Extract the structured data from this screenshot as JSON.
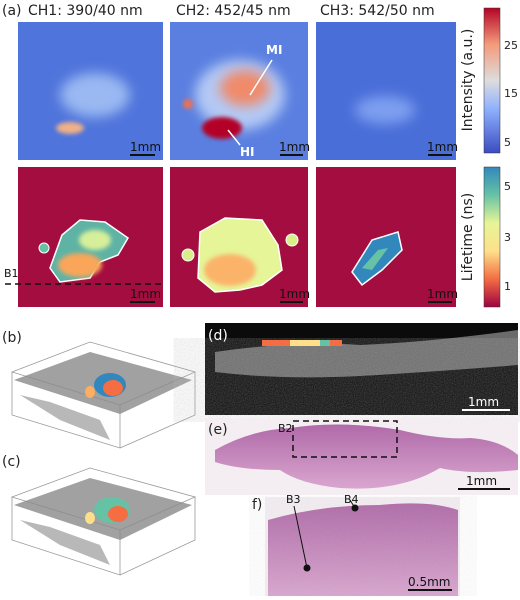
{
  "panel_a": {
    "label": "(a)",
    "channels": [
      "CH1: 390/40 nm",
      "CH2: 452/45 nm",
      "CH3: 542/50 nm"
    ],
    "intensity_colorbar": {
      "label": "Intensity (a.u.)",
      "ticks": [
        25,
        15,
        5
      ]
    },
    "lifetime_colorbar": {
      "label": "Lifetime (ns)",
      "ticks": [
        5,
        3,
        1
      ]
    },
    "scale_bars": [
      "1mm",
      "1mm",
      "1mm",
      "1mm",
      "1mm",
      "1mm"
    ],
    "annotations": {
      "mi": "MI",
      "hi": "HI",
      "b1": "B1"
    }
  },
  "panel_b": {
    "label": "(b)"
  },
  "panel_c": {
    "label": "(c)"
  },
  "panel_d": {
    "label": "(d)",
    "scale_bar": "1mm"
  },
  "panel_e": {
    "label": "(e)",
    "scale_bar": "1mm",
    "annotation": "B2"
  },
  "panel_f": {
    "label": "f)",
    "scale_bar": "0.5mm",
    "annotations": [
      "B3",
      "B4"
    ]
  }
}
